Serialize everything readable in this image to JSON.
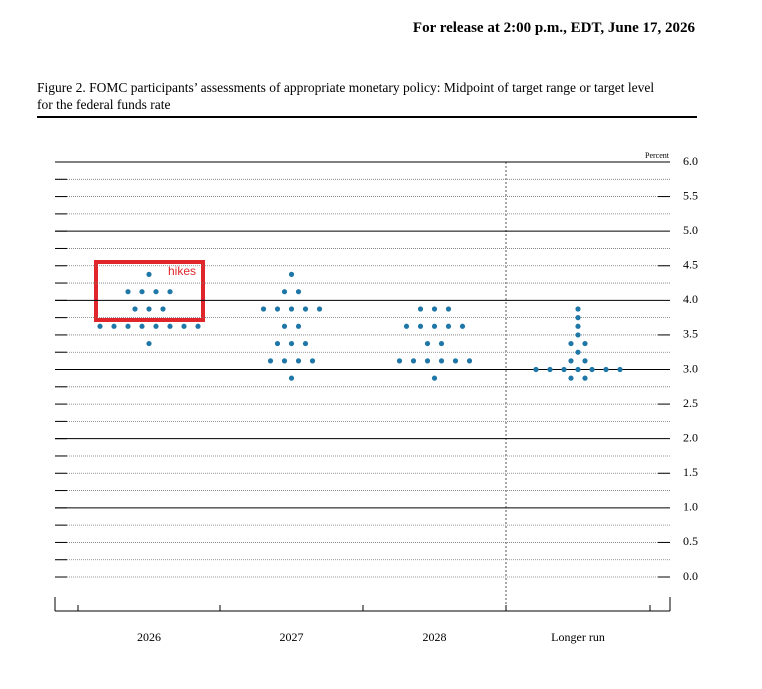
{
  "release_note": "For release at 2:00 p.m., EDT, June 17, 2026",
  "chart_data": {
    "type": "dot",
    "title": "Figure 2. FOMC participants’ assessments of appropriate monetary policy: Midpoint of target range or target level for the federal funds rate",
    "y_unit": "Percent",
    "annotation": "hikes",
    "color": "#1f77a8",
    "categories": [
      "2026",
      "2027",
      "2028",
      "Longer run"
    ],
    "values": [
      [
        4.375,
        4.125,
        4.125,
        4.125,
        4.125,
        3.875,
        3.875,
        3.875,
        3.625,
        3.625,
        3.625,
        3.625,
        3.625,
        3.625,
        3.625,
        3.625,
        3.375
      ],
      [
        4.375,
        4.125,
        4.125,
        3.875,
        3.875,
        3.875,
        3.875,
        3.875,
        3.625,
        3.625,
        3.375,
        3.375,
        3.375,
        3.125,
        3.125,
        3.125,
        3.125,
        2.875
      ],
      [
        3.875,
        3.875,
        3.875,
        3.625,
        3.625,
        3.625,
        3.625,
        3.625,
        3.375,
        3.375,
        3.125,
        3.125,
        3.125,
        3.125,
        3.125,
        3.125,
        2.875
      ],
      [
        3.875,
        3.75,
        3.625,
        3.5,
        3.375,
        3.375,
        3.25,
        3.125,
        3.125,
        3,
        3,
        3,
        3,
        3,
        3,
        3,
        2.875,
        2.875
      ]
    ],
    "ylim": [
      -0.5,
      6
    ],
    "yticks": [
      {
        "value": 0,
        "label": "0.0"
      },
      0.5,
      {
        "value": 1,
        "label": "1.0"
      },
      1.5,
      {
        "value": 2,
        "label": "2.0"
      },
      2.5,
      {
        "value": 3,
        "label": "3.0"
      },
      3.5,
      {
        "value": 4,
        "label": "4.0"
      },
      4.5,
      {
        "value": 5,
        "label": "5.0"
      },
      5.5,
      {
        "value": 6,
        "label": "6.0"
      }
    ],
    "yminorticks": [
      0.25,
      0.75,
      1.25,
      1.75,
      2.25,
      2.75,
      3.25,
      3.75,
      4.25,
      4.75,
      5.25,
      5.75
    ],
    "grid": true
  }
}
